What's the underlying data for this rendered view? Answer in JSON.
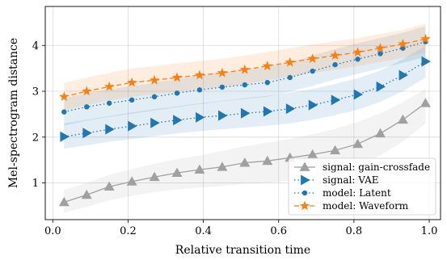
{
  "chart_data": {
    "type": "line",
    "title": "",
    "xlabel": "Relative transition time",
    "ylabel": "Mel-spectrogram distance",
    "xlim": [
      -0.02,
      1.03
    ],
    "ylim": [
      0.2,
      4.85
    ],
    "xticks": [
      0.0,
      0.2,
      0.4,
      0.6,
      0.8,
      1.0
    ],
    "xtick_labels": [
      "0.0",
      "0.2",
      "0.4",
      "0.6",
      "0.8",
      "1.0"
    ],
    "yticks": [
      1,
      2,
      3,
      4
    ],
    "ytick_labels": [
      "1",
      "2",
      "3",
      "4"
    ],
    "grid": true,
    "legend_position": "bottom-right",
    "x": [
      0.03,
      0.09,
      0.15,
      0.21,
      0.27,
      0.33,
      0.39,
      0.45,
      0.51,
      0.57,
      0.63,
      0.69,
      0.75,
      0.81,
      0.87,
      0.93,
      0.99
    ],
    "series": [
      {
        "name": "signal: gain-crossfade",
        "color": "#a0a0a0",
        "line_style": "solid",
        "marker": "triangle-up",
        "values": [
          0.58,
          0.74,
          0.92,
          1.03,
          1.13,
          1.22,
          1.29,
          1.35,
          1.44,
          1.48,
          1.55,
          1.62,
          1.71,
          1.85,
          2.08,
          2.38,
          2.74
        ],
        "band_lower": [
          0.35,
          0.48,
          0.62,
          0.72,
          0.8,
          0.86,
          0.9,
          0.93,
          0.98,
          1.0,
          1.05,
          1.12,
          1.22,
          1.38,
          1.6,
          1.9,
          2.3
        ],
        "band_upper": [
          0.85,
          1.0,
          1.18,
          1.3,
          1.42,
          1.52,
          1.6,
          1.7,
          1.8,
          1.88,
          1.96,
          2.06,
          2.18,
          2.33,
          2.52,
          2.76,
          3.05
        ]
      },
      {
        "name": "signal: VAE",
        "color": "#1f77b4",
        "line_style": "dotted",
        "marker": "triangle-right",
        "values": [
          2.01,
          2.09,
          2.17,
          2.24,
          2.31,
          2.37,
          2.43,
          2.47,
          2.52,
          2.56,
          2.62,
          2.7,
          2.81,
          2.93,
          3.1,
          3.35,
          3.65
        ],
        "band_lower": [
          1.75,
          1.82,
          1.9,
          1.96,
          2.02,
          2.08,
          2.13,
          2.17,
          2.21,
          2.25,
          2.3,
          2.38,
          2.48,
          2.6,
          2.77,
          3.0,
          3.3
        ],
        "band_upper": [
          2.3,
          2.38,
          2.46,
          2.54,
          2.61,
          2.67,
          2.74,
          2.79,
          2.85,
          2.9,
          2.97,
          3.05,
          3.16,
          3.28,
          3.45,
          3.7,
          4.0
        ]
      },
      {
        "name": "model: Latent",
        "color": "#1f77b4",
        "line_style": "dotted",
        "marker": "circle",
        "values": [
          2.55,
          2.66,
          2.74,
          2.81,
          2.88,
          2.96,
          3.03,
          3.09,
          3.14,
          3.19,
          3.3,
          3.44,
          3.58,
          3.7,
          3.82,
          3.94,
          4.08
        ],
        "band_lower": [
          2.25,
          2.36,
          2.44,
          2.51,
          2.58,
          2.65,
          2.72,
          2.78,
          2.83,
          2.88,
          2.99,
          3.12,
          3.26,
          3.38,
          3.5,
          3.62,
          3.75
        ],
        "band_upper": [
          2.85,
          2.96,
          3.04,
          3.11,
          3.18,
          3.27,
          3.34,
          3.4,
          3.46,
          3.52,
          3.63,
          3.78,
          3.92,
          4.05,
          4.16,
          4.28,
          4.42
        ]
      },
      {
        "name": "model: Waveform",
        "color": "#ff7f0e",
        "line_style": "dashed",
        "marker": "star",
        "values": [
          2.88,
          3.0,
          3.1,
          3.19,
          3.24,
          3.3,
          3.35,
          3.4,
          3.47,
          3.55,
          3.63,
          3.71,
          3.78,
          3.85,
          3.94,
          4.03,
          4.14
        ],
        "band_lower": [
          2.58,
          2.7,
          2.8,
          2.88,
          2.93,
          2.99,
          3.04,
          3.09,
          3.16,
          3.24,
          3.32,
          3.4,
          3.47,
          3.55,
          3.64,
          3.73,
          3.84
        ],
        "band_upper": [
          3.18,
          3.3,
          3.4,
          3.5,
          3.55,
          3.61,
          3.66,
          3.71,
          3.78,
          3.86,
          3.94,
          4.02,
          4.09,
          4.16,
          4.25,
          4.34,
          4.48
        ]
      }
    ]
  }
}
